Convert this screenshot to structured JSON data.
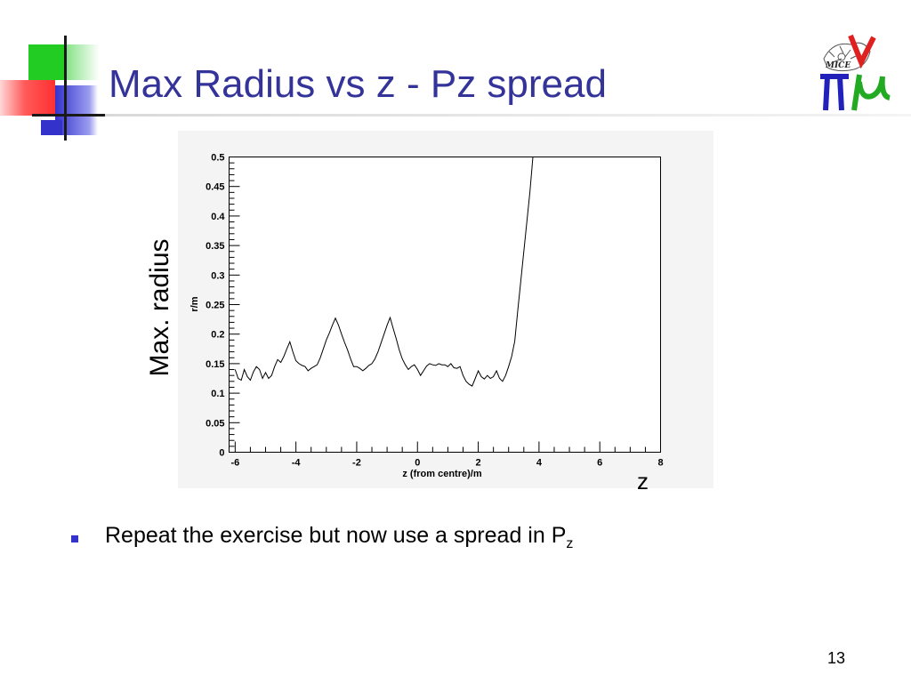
{
  "slide": {
    "title": "Max Radius vs z - Pz spread",
    "page_number": "13",
    "bullet_text": "Repeat the exercise but now use a spread in P",
    "bullet_subscript": "z",
    "logo_text": "MICE"
  },
  "labels": {
    "y_overlay": "Max. radius",
    "x_overlay": "z"
  },
  "colors": {
    "title": "#33339a",
    "bullet": "#3333cc",
    "accent_green": "#22cc22",
    "accent_red": "#ff3030",
    "accent_blue": "#3333cc"
  },
  "chart_data": {
    "type": "line",
    "xlabel": "z (from centre)/m",
    "ylabel": "r/m",
    "xlim": [
      -6.2,
      8
    ],
    "ylim": [
      0,
      0.5
    ],
    "x_ticks": [
      -6,
      -4,
      -2,
      0,
      2,
      4,
      6,
      8
    ],
    "x_tick_labels": [
      "-6",
      "-4",
      "-2",
      "0",
      "2",
      "4",
      "6",
      "8"
    ],
    "y_ticks": [
      0,
      0.05,
      0.1,
      0.15,
      0.2,
      0.25,
      0.3,
      0.35,
      0.4,
      0.45,
      0.5
    ],
    "y_tick_labels": [
      "0",
      "0.05",
      "0.1",
      "0.15",
      "0.2",
      "0.25",
      "0.3",
      "0.35",
      "0.4",
      "0.45",
      "0.5"
    ],
    "grid": false,
    "series": [
      {
        "x": [
          -6.0,
          -5.9,
          -5.8,
          -5.7,
          -5.6,
          -5.5,
          -5.4,
          -5.3,
          -5.2,
          -5.1,
          -5.0,
          -4.9,
          -4.8,
          -4.7,
          -4.6,
          -4.5,
          -4.4,
          -4.3,
          -4.2,
          -4.1,
          -4.0,
          -3.9,
          -3.8,
          -3.7,
          -3.6,
          -3.5,
          -3.4,
          -3.3,
          -3.2,
          -3.1,
          -3.0,
          -2.9,
          -2.8,
          -2.7,
          -2.6,
          -2.5,
          -2.4,
          -2.3,
          -2.2,
          -2.1,
          -2.0,
          -1.9,
          -1.8,
          -1.7,
          -1.6,
          -1.5,
          -1.4,
          -1.3,
          -1.2,
          -1.1,
          -1.0,
          -0.9,
          -0.8,
          -0.7,
          -0.6,
          -0.5,
          -0.4,
          -0.3,
          -0.2,
          -0.1,
          0.0,
          0.1,
          0.2,
          0.3,
          0.4,
          0.5,
          0.6,
          0.7,
          0.8,
          0.9,
          1.0,
          1.1,
          1.2,
          1.3,
          1.4,
          1.5,
          1.6,
          1.7,
          1.8,
          1.9,
          2.0,
          2.1,
          2.2,
          2.3,
          2.4,
          2.5,
          2.6,
          2.7,
          2.8,
          2.9,
          3.0,
          3.1,
          3.2,
          3.3,
          3.4,
          3.5,
          3.6,
          3.7,
          3.8,
          3.9,
          4.0,
          4.1,
          4.2,
          4.3,
          4.4,
          4.5,
          4.6,
          4.7,
          4.8,
          4.9,
          5.0,
          5.1,
          5.2,
          5.3,
          5.4,
          5.5,
          5.6,
          5.7,
          5.8,
          5.9,
          6.0,
          6.1,
          6.2,
          6.3,
          6.4,
          6.5,
          6.6,
          6.7,
          6.8,
          6.9,
          7.0
        ],
        "y": [
          0.14,
          0.125,
          0.122,
          0.14,
          0.128,
          0.122,
          0.136,
          0.145,
          0.14,
          0.125,
          0.135,
          0.125,
          0.13,
          0.145,
          0.157,
          0.152,
          0.162,
          0.175,
          0.187,
          0.17,
          0.155,
          0.15,
          0.147,
          0.145,
          0.138,
          0.142,
          0.145,
          0.148,
          0.16,
          0.175,
          0.19,
          0.202,
          0.215,
          0.227,
          0.215,
          0.2,
          0.186,
          0.173,
          0.158,
          0.145,
          0.145,
          0.142,
          0.138,
          0.142,
          0.147,
          0.15,
          0.158,
          0.17,
          0.185,
          0.2,
          0.215,
          0.228,
          0.21,
          0.192,
          0.173,
          0.158,
          0.148,
          0.14,
          0.145,
          0.148,
          0.14,
          0.13,
          0.138,
          0.146,
          0.15,
          0.148,
          0.147,
          0.15,
          0.148,
          0.148,
          0.145,
          0.15,
          0.143,
          0.142,
          0.145,
          0.13,
          0.12,
          0.115,
          0.112,
          0.125,
          0.138,
          0.128,
          0.124,
          0.13,
          0.125,
          0.128,
          0.138,
          0.125,
          0.12,
          0.13,
          0.145,
          0.162,
          0.188,
          0.24,
          0.29,
          0.34,
          0.39,
          0.44,
          0.5,
          0.5,
          0.5,
          0.5,
          0.5,
          0.5,
          0.5,
          0.5,
          0.5,
          0.5,
          0.5,
          0.5,
          0.5,
          0.5,
          0.5,
          0.5,
          0.5,
          0.5,
          0.5,
          0.5,
          0.5,
          0.5,
          0.5,
          0.5,
          0.5,
          0.5,
          0.5,
          0.5,
          0.5,
          0.5,
          0.5,
          0.5,
          0.5
        ]
      }
    ]
  }
}
